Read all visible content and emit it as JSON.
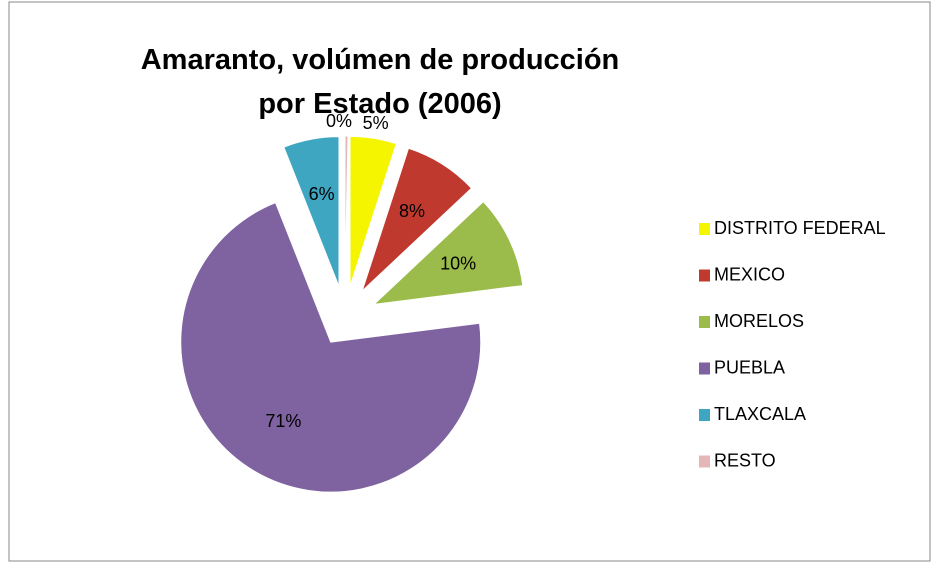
{
  "chart_data": {
    "type": "pie",
    "title": "Amaranto, volúmen de producción por Estado (2006)",
    "categories": [
      "DISTRITO FEDERAL",
      "MEXICO",
      "MORELOS",
      "PUEBLA",
      "TLAXCALA",
      "RESTO"
    ],
    "values": [
      5,
      8,
      10,
      71,
      6,
      0
    ],
    "value_labels": [
      "5%",
      "8%",
      "10%",
      "71%",
      "6%",
      "0%"
    ],
    "colors": [
      "#f5f500",
      "#c0392f",
      "#9bbb4a",
      "#7f62a0",
      "#3fa6c2",
      "#e4b7b6"
    ],
    "legend": "right"
  }
}
